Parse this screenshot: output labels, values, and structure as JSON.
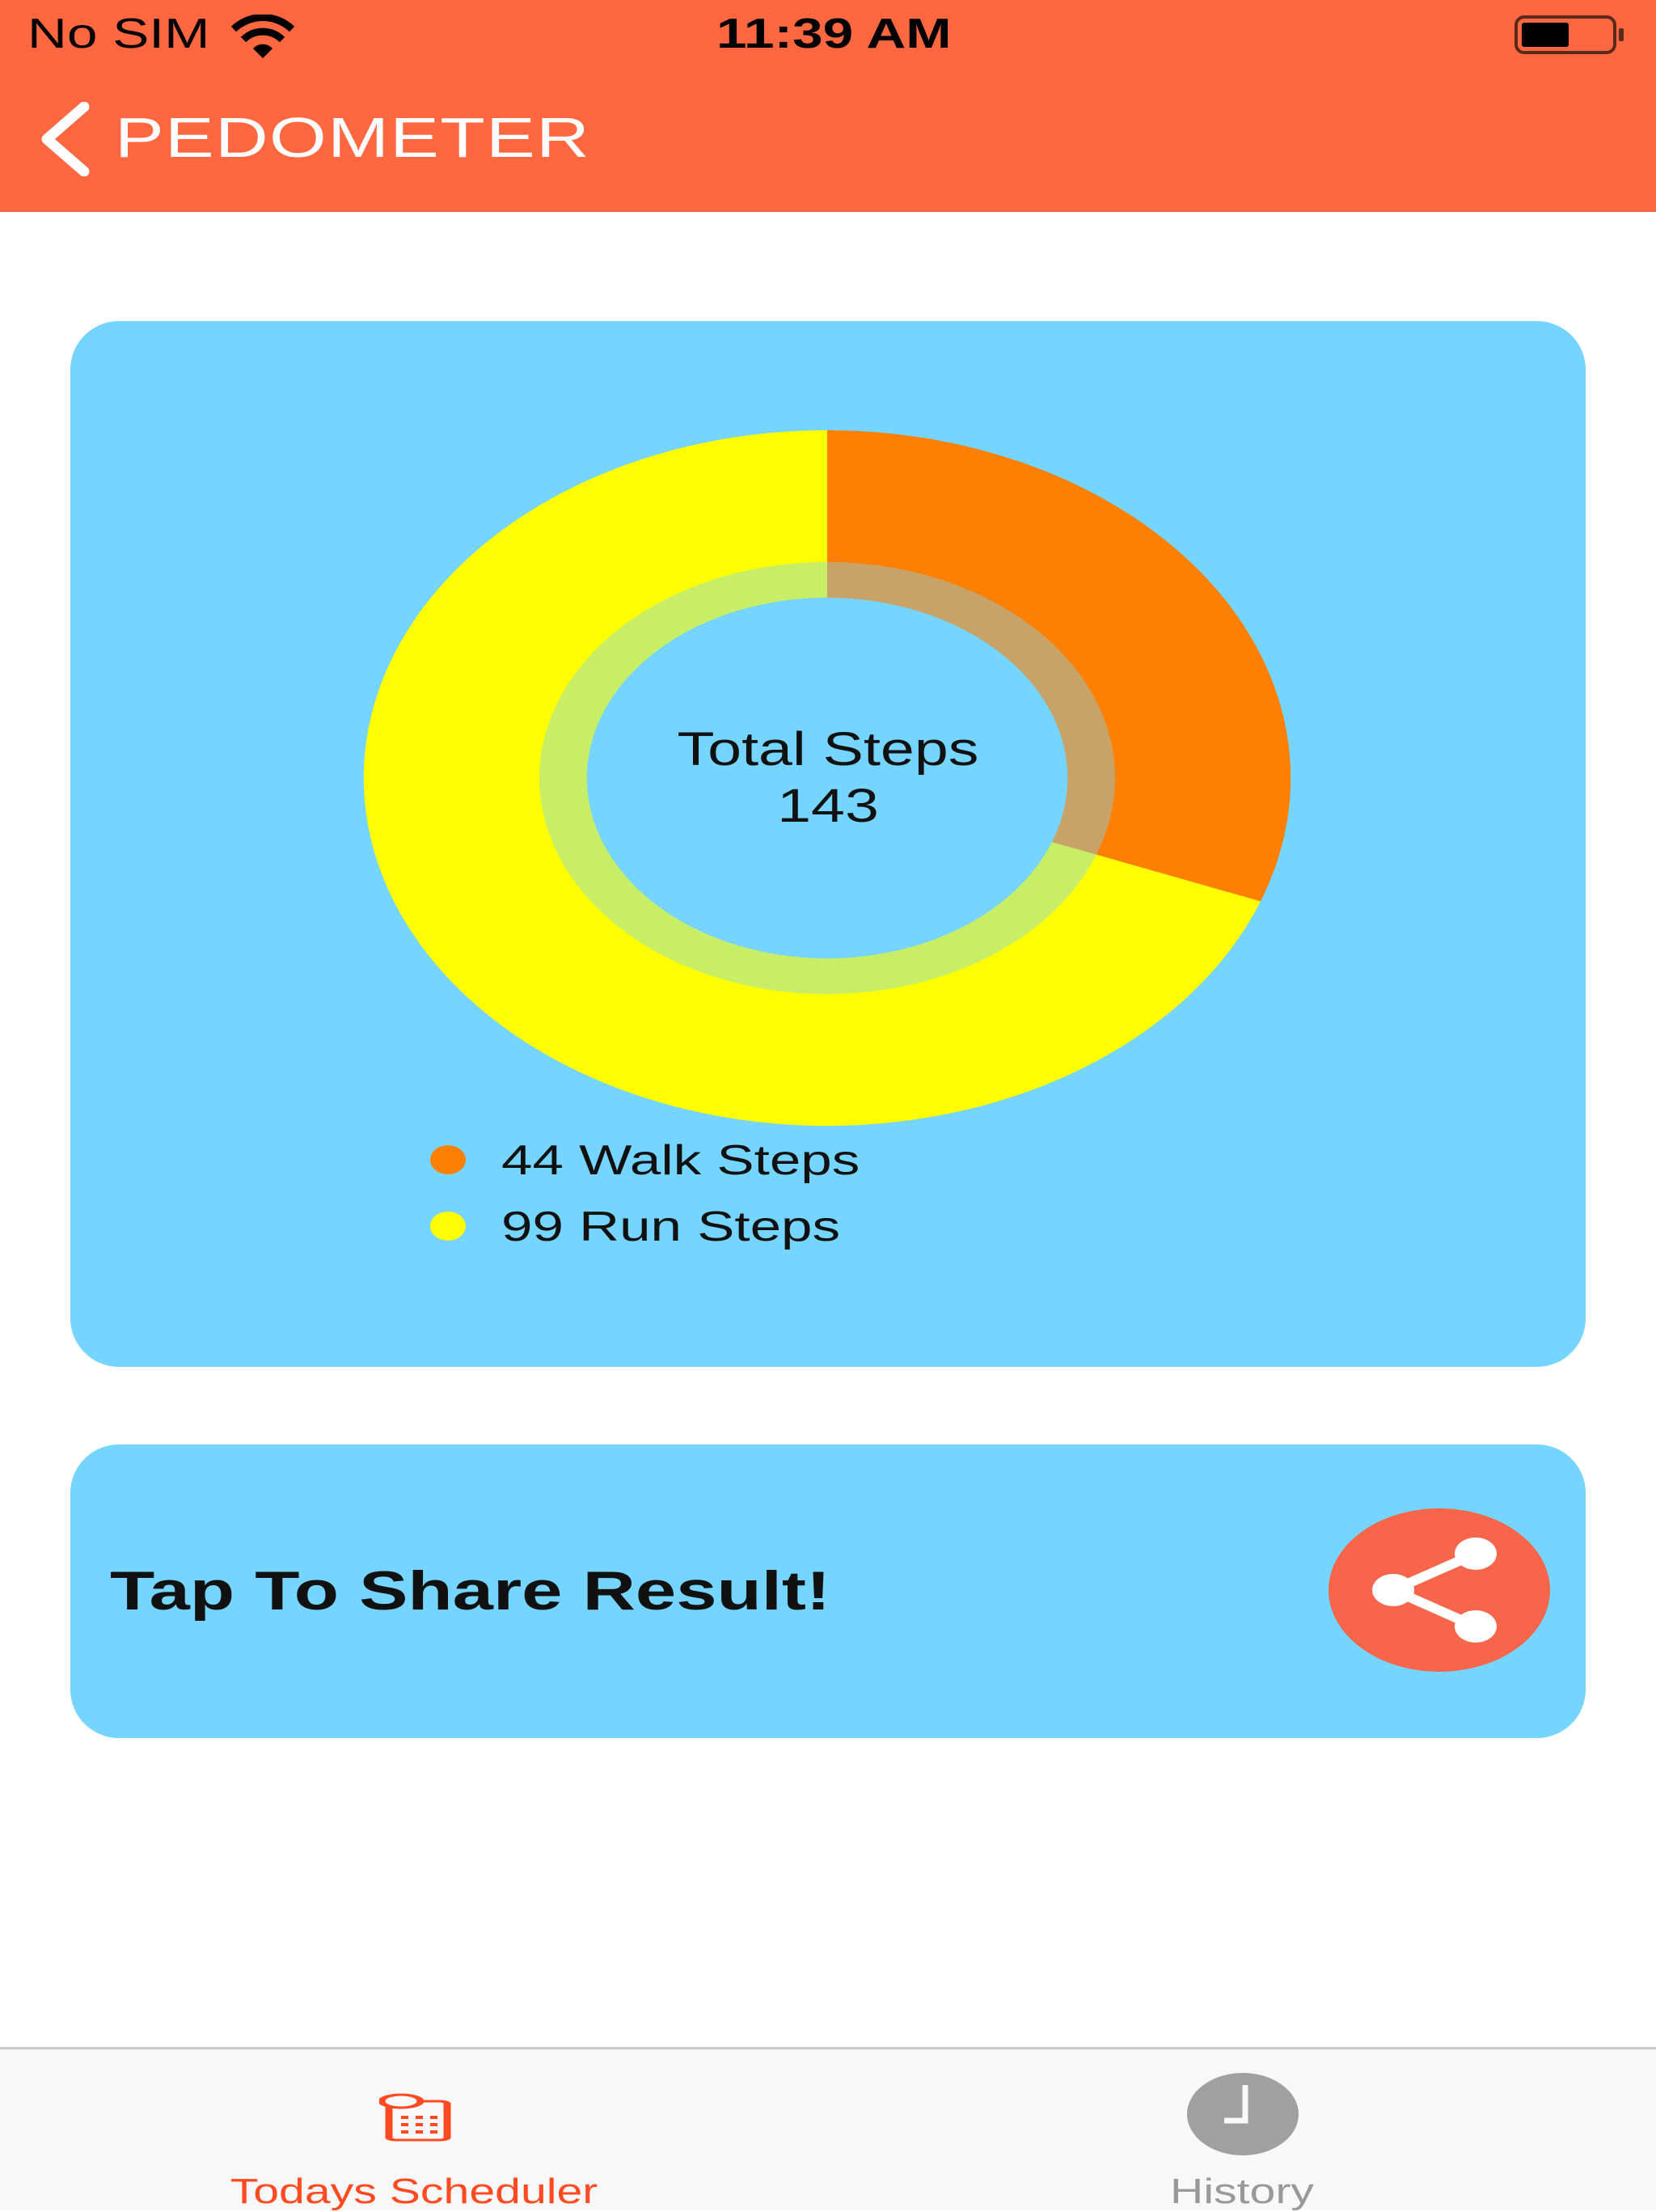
{
  "status_bar": {
    "carrier": "No SIM",
    "time": "11:39 AM",
    "battery_level": 0.5
  },
  "nav": {
    "title": "PEDOMETER",
    "back_icon": "chevron-left-icon"
  },
  "colors": {
    "header": "#ff6741",
    "card": "#75d5fe",
    "walk": "#ff8000",
    "run": "#ffff00",
    "active_tab": "#ff4a22",
    "inactive_tab": "#a0a0a0"
  },
  "chart_data": {
    "type": "pie",
    "center_label": "Total Steps",
    "center_value": "143",
    "slices": [
      {
        "name": "Walk Steps",
        "value": 44,
        "color": "#ff8000"
      },
      {
        "name": "Run Steps",
        "value": 99,
        "color": "#ffff00"
      }
    ],
    "legend": [
      "44 Walk Steps",
      "99 Run Steps"
    ],
    "legend_placement": "bottom-left"
  },
  "share": {
    "label": "Tap To Share Result!",
    "icon": "share-icon"
  },
  "tabs": [
    {
      "label": "Todays Scheduler",
      "icon": "calendar-clock-icon",
      "active": true
    },
    {
      "label": "History",
      "icon": "clock-icon",
      "active": false
    }
  ]
}
